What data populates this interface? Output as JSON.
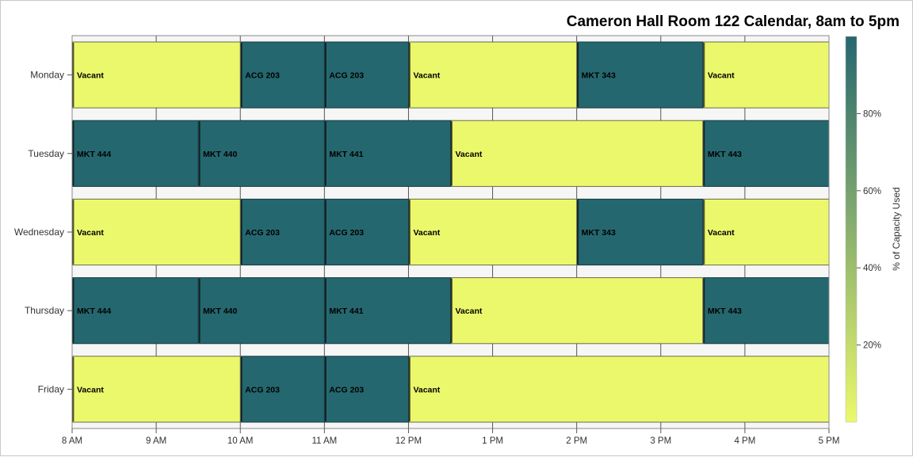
{
  "chart_data": {
    "type": "bar",
    "orientation": "horizontal-timeline",
    "title": "Cameron Hall Room 122 Calendar, 8am to 5pm",
    "xlabel": "",
    "ylabel": "",
    "xlim": [
      8,
      17
    ],
    "x_tick_values": [
      8,
      9,
      10,
      11,
      12,
      13,
      14,
      15,
      16,
      17
    ],
    "x_tick_labels": [
      "8 AM",
      "9 AM",
      "10 AM",
      "11 AM",
      "12 PM",
      "1 PM",
      "2 PM",
      "3 PM",
      "4 PM",
      "5 PM"
    ],
    "categories": [
      "Monday",
      "Tuesday",
      "Wednesday",
      "Thursday",
      "Friday"
    ],
    "series": [
      {
        "day": "Monday",
        "blocks": [
          {
            "label": "Vacant",
            "start": 8,
            "end": 10,
            "capacity": 0
          },
          {
            "label": "ACG 203",
            "start": 10,
            "end": 11,
            "capacity": 100
          },
          {
            "label": "ACG 203",
            "start": 11,
            "end": 12,
            "capacity": 100
          },
          {
            "label": "Vacant",
            "start": 12,
            "end": 14,
            "capacity": 0
          },
          {
            "label": "MKT 343",
            "start": 14,
            "end": 15.5,
            "capacity": 100
          },
          {
            "label": "Vacant",
            "start": 15.5,
            "end": 17,
            "capacity": 0
          }
        ]
      },
      {
        "day": "Tuesday",
        "blocks": [
          {
            "label": "MKT 444",
            "start": 8,
            "end": 9.5,
            "capacity": 100
          },
          {
            "label": "MKT 440",
            "start": 9.5,
            "end": 11,
            "capacity": 100
          },
          {
            "label": "MKT 441",
            "start": 11,
            "end": 12.5,
            "capacity": 100
          },
          {
            "label": "Vacant",
            "start": 12.5,
            "end": 15.5,
            "capacity": 0
          },
          {
            "label": "MKT 443",
            "start": 15.5,
            "end": 17,
            "capacity": 100
          }
        ]
      },
      {
        "day": "Wednesday",
        "blocks": [
          {
            "label": "Vacant",
            "start": 8,
            "end": 10,
            "capacity": 0
          },
          {
            "label": "ACG 203",
            "start": 10,
            "end": 11,
            "capacity": 100
          },
          {
            "label": "ACG 203",
            "start": 11,
            "end": 12,
            "capacity": 100
          },
          {
            "label": "Vacant",
            "start": 12,
            "end": 14,
            "capacity": 0
          },
          {
            "label": "MKT 343",
            "start": 14,
            "end": 15.5,
            "capacity": 100
          },
          {
            "label": "Vacant",
            "start": 15.5,
            "end": 17,
            "capacity": 0
          }
        ]
      },
      {
        "day": "Thursday",
        "blocks": [
          {
            "label": "MKT 444",
            "start": 8,
            "end": 9.5,
            "capacity": 100
          },
          {
            "label": "MKT 440",
            "start": 9.5,
            "end": 11,
            "capacity": 100
          },
          {
            "label": "MKT 441",
            "start": 11,
            "end": 12.5,
            "capacity": 100
          },
          {
            "label": "Vacant",
            "start": 12.5,
            "end": 15.5,
            "capacity": 0
          },
          {
            "label": "MKT 443",
            "start": 15.5,
            "end": 17,
            "capacity": 100
          }
        ]
      },
      {
        "day": "Friday",
        "blocks": [
          {
            "label": "Vacant",
            "start": 8,
            "end": 10,
            "capacity": 0
          },
          {
            "label": "ACG 203",
            "start": 10,
            "end": 11,
            "capacity": 100
          },
          {
            "label": "ACG 203",
            "start": 11,
            "end": 12,
            "capacity": 100
          },
          {
            "label": "Vacant",
            "start": 12,
            "end": 17,
            "capacity": 0
          }
        ]
      }
    ],
    "colorbar": {
      "label": "% of Capacity Used",
      "range": [
        0,
        100
      ],
      "tick_values": [
        20,
        40,
        60,
        80
      ],
      "tick_labels": [
        "20%",
        "40%",
        "60%",
        "80%"
      ],
      "colors": [
        "#ecf86c",
        "#a9de74",
        "#5cb97a",
        "#2b9982",
        "#277c7d",
        "#25676f"
      ]
    },
    "colors": {
      "low": "#ecf86c",
      "high": "#25676f",
      "band_light": "#f6f6f6",
      "band_dark": "#e3e3e3",
      "grid": "#555555"
    },
    "grid": true,
    "legend_position": "right"
  }
}
